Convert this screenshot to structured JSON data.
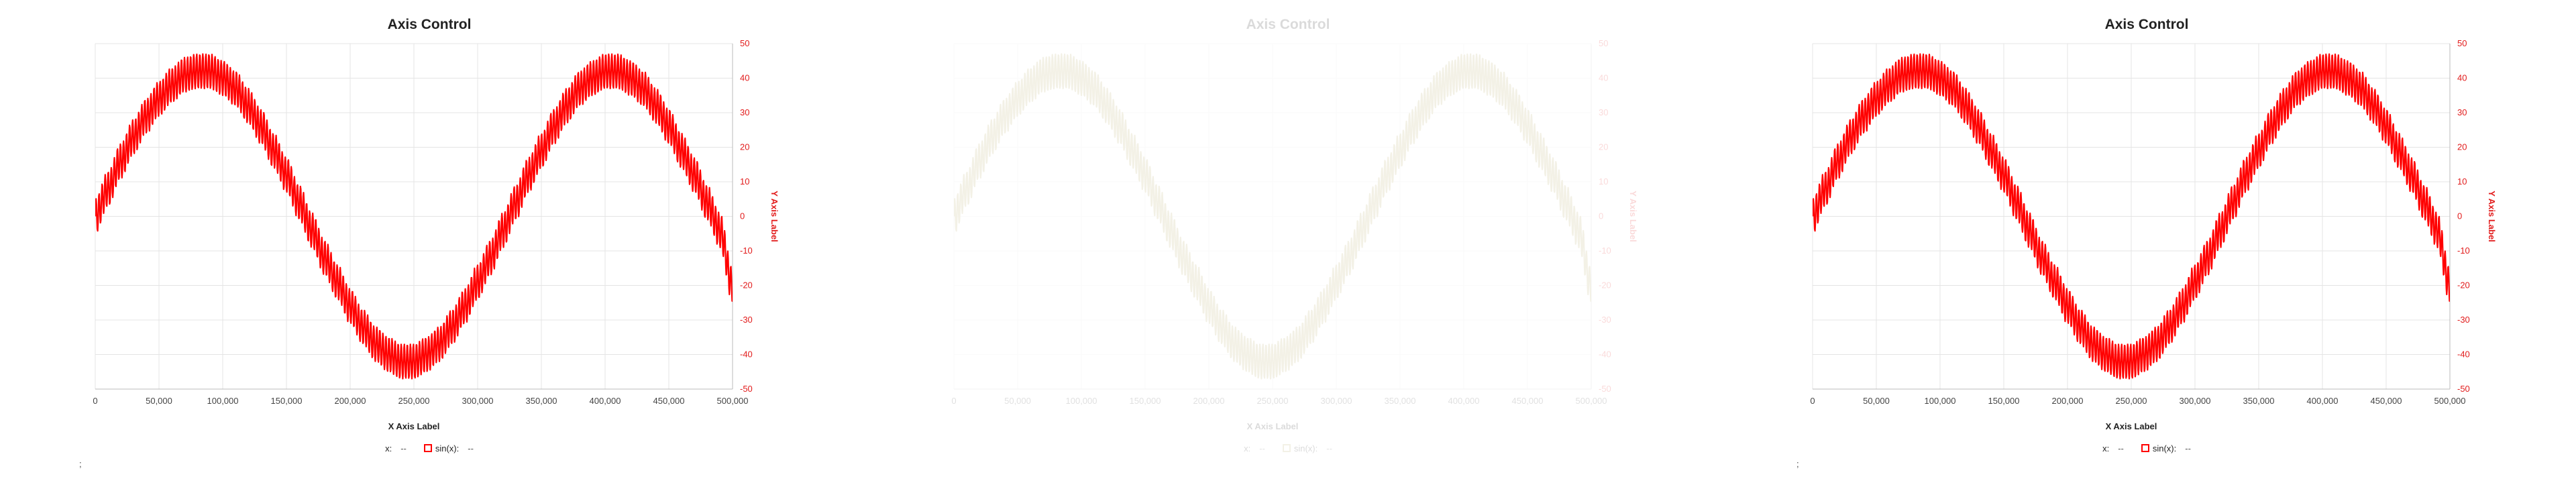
{
  "chart_data": [
    {
      "type": "line",
      "title": "Axis Control",
      "xlabel": "X Axis Label",
      "ylabel": "Y Axis Label",
      "xlim": [
        0,
        500000
      ],
      "ylim": [
        -50,
        50
      ],
      "xticks": [
        "0",
        "50,000",
        "100,000",
        "150,000",
        "200,000",
        "250,000",
        "300,000",
        "350,000",
        "400,000",
        "450,000",
        "500,000"
      ],
      "yticks": [
        "50",
        "40",
        "30",
        "20",
        "10",
        "0",
        "-10",
        "-20",
        "-30",
        "-40",
        "-50"
      ],
      "grid": true,
      "legend_position": "bottom",
      "series": [
        {
          "name": "sin(x)",
          "color": "#ff0000",
          "x": [
            0,
            10000,
            20000,
            30000,
            40000,
            50000,
            60000,
            70000,
            80000,
            90000,
            100000,
            110000,
            120000,
            130000,
            140000,
            150000,
            160000,
            170000,
            180000,
            190000,
            200000,
            210000,
            220000,
            230000,
            240000,
            250000,
            260000,
            270000,
            280000,
            290000,
            300000,
            310000,
            320000,
            330000,
            340000,
            350000,
            360000,
            370000,
            380000,
            390000,
            400000,
            410000,
            420000,
            430000,
            440000,
            450000,
            460000,
            470000,
            480000,
            490000,
            500000
          ],
          "y": [
            0,
            8,
            16,
            23,
            29,
            34,
            38,
            41,
            42,
            42,
            40,
            37,
            32,
            26,
            19,
            12,
            4,
            -4,
            -12,
            -19,
            -26,
            -32,
            -37,
            -40,
            -42,
            -42,
            -40,
            -37,
            -32,
            -26,
            -19,
            -12,
            -4,
            4,
            12,
            19,
            26,
            32,
            37,
            40,
            42,
            42,
            40,
            37,
            32,
            26,
            19,
            12,
            4,
            -4,
            -20
          ]
        }
      ],
      "legend": [
        {
          "label": "x:",
          "value": "--"
        },
        {
          "label": "sin(x):",
          "value": "--"
        }
      ]
    },
    {
      "type": "line",
      "title": "Axis Control",
      "xlabel": "X Axis Label",
      "ylabel": "Y Axis Label",
      "xlim": [
        0,
        500000
      ],
      "ylim": [
        -50,
        50
      ],
      "xticks": [
        "0",
        "50,000",
        "100,000",
        "150,000",
        "200,000",
        "250,000",
        "300,000",
        "350,000",
        "400,000",
        "450,000",
        "500,000"
      ],
      "yticks": [
        "50",
        "40",
        "30",
        "20",
        "10",
        "0",
        "-10",
        "-20",
        "-30",
        "-40",
        "-50"
      ],
      "grid": true,
      "legend_position": "bottom",
      "series": [
        {
          "name": "sin(x)",
          "color": "#b9aa6a",
          "x": [
            0,
            10000,
            20000,
            30000,
            40000,
            50000,
            60000,
            70000,
            80000,
            90000,
            100000,
            110000,
            120000,
            130000,
            140000,
            150000,
            160000,
            170000,
            180000,
            190000,
            200000,
            210000,
            220000,
            230000,
            240000,
            250000,
            260000,
            270000,
            280000,
            290000,
            300000,
            310000,
            320000,
            330000,
            340000,
            350000,
            360000,
            370000,
            380000,
            390000,
            400000,
            410000,
            420000,
            430000,
            440000,
            450000,
            460000,
            470000,
            480000,
            490000,
            500000
          ],
          "y": [
            0,
            8,
            16,
            23,
            29,
            34,
            38,
            41,
            42,
            42,
            40,
            37,
            32,
            26,
            19,
            12,
            4,
            -4,
            -12,
            -19,
            -26,
            -32,
            -37,
            -40,
            -42,
            -42,
            -40,
            -37,
            -32,
            -26,
            -19,
            -12,
            -4,
            4,
            12,
            19,
            26,
            32,
            37,
            40,
            42,
            42,
            40,
            37,
            32,
            26,
            19,
            12,
            4,
            -4,
            -20
          ]
        }
      ],
      "legend": [
        {
          "label": "x:",
          "value": "--"
        },
        {
          "label": "sin(x):",
          "value": "--"
        }
      ]
    },
    {
      "type": "line",
      "title": "Axis Control",
      "xlabel": "X Axis Label",
      "ylabel": "Y Axis Label",
      "xlim": [
        0,
        500000
      ],
      "ylim": [
        -50,
        50
      ],
      "xticks": [
        "0",
        "50,000",
        "100,000",
        "150,000",
        "200,000",
        "250,000",
        "300,000",
        "350,000",
        "400,000",
        "450,000",
        "500,000"
      ],
      "yticks": [
        "50",
        "40",
        "30",
        "20",
        "10",
        "0",
        "-10",
        "-20",
        "-30",
        "-40",
        "-50"
      ],
      "grid": true,
      "legend_position": "bottom",
      "series": [
        {
          "name": "sin(x)",
          "color": "#ff0000",
          "x": [
            0,
            10000,
            20000,
            30000,
            40000,
            50000,
            60000,
            70000,
            80000,
            90000,
            100000,
            110000,
            120000,
            130000,
            140000,
            150000,
            160000,
            170000,
            180000,
            190000,
            200000,
            210000,
            220000,
            230000,
            240000,
            250000,
            260000,
            270000,
            280000,
            290000,
            300000,
            310000,
            320000,
            330000,
            340000,
            350000,
            360000,
            370000,
            380000,
            390000,
            400000,
            410000,
            420000,
            430000,
            440000,
            450000,
            460000,
            470000,
            480000,
            490000,
            500000
          ],
          "y": [
            0,
            8,
            16,
            23,
            29,
            34,
            38,
            41,
            42,
            42,
            40,
            37,
            32,
            26,
            19,
            12,
            4,
            -4,
            -12,
            -19,
            -26,
            -32,
            -37,
            -40,
            -42,
            -42,
            -40,
            -37,
            -32,
            -26,
            -19,
            -12,
            -4,
            4,
            12,
            19,
            26,
            32,
            37,
            40,
            42,
            42,
            40,
            37,
            32,
            26,
            19,
            12,
            4,
            -4,
            -20
          ]
        }
      ],
      "legend": [
        {
          "label": "x:",
          "value": "--"
        },
        {
          "label": "sin(x):",
          "value": "--"
        }
      ]
    }
  ],
  "footer_mark": ";"
}
